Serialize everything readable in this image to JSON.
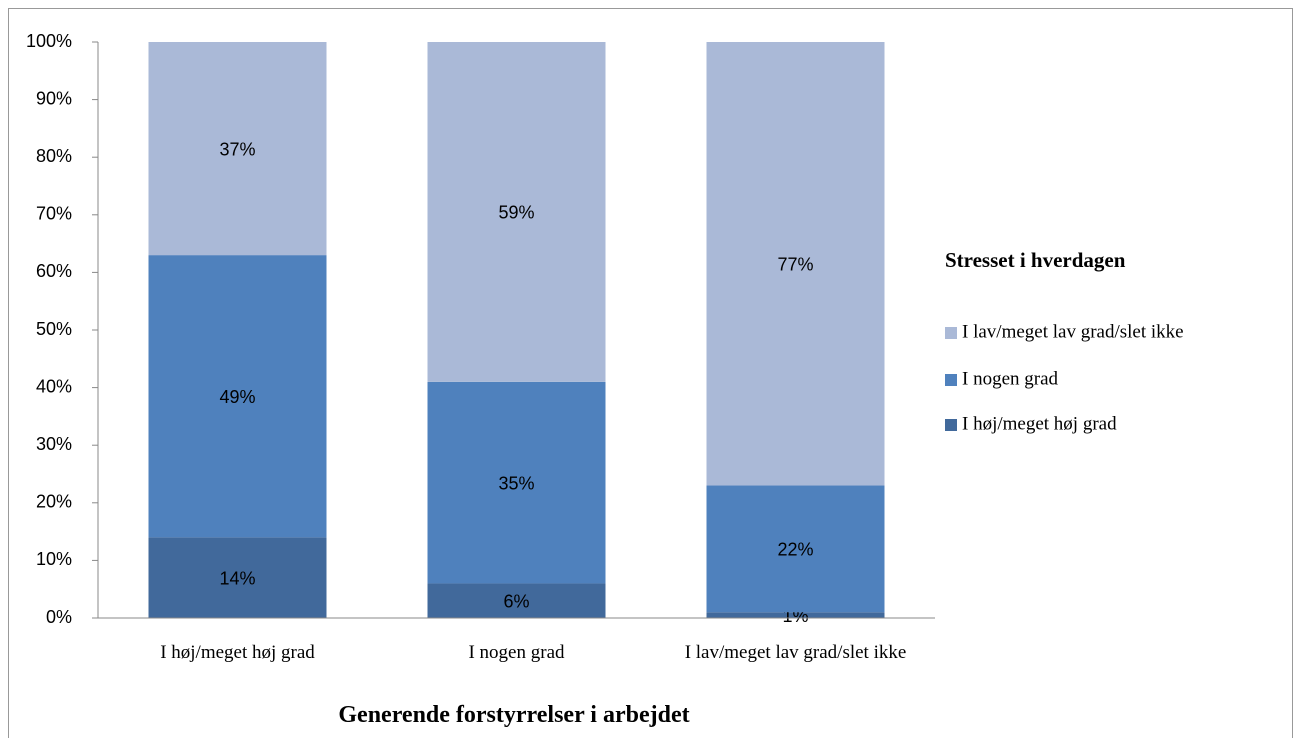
{
  "chart_data": {
    "type": "stacked_bar",
    "x_label": "Generende forstyrrelser i arbejdet",
    "legend_title": "Stresset i hverdagen",
    "legend": "right",
    "categories": [
      "I høj/meget høj grad",
      "I nogen grad",
      "I lav/meget lav grad/slet ikke"
    ],
    "series": [
      {
        "name": "I høj/meget høj grad",
        "color": "#41699b",
        "values": [
          14,
          6,
          1
        ],
        "value_labels": [
          "14%",
          "6%",
          "1%"
        ]
      },
      {
        "name": "I nogen grad",
        "color": "#4f81bd",
        "values": [
          49,
          35,
          22
        ],
        "value_labels": [
          "49%",
          "35%",
          "22%"
        ]
      },
      {
        "name": "I lav/meget lav grad/slet ikke",
        "color": "#aab9d7",
        "values": [
          37,
          59,
          77
        ],
        "value_labels": [
          "37%",
          "59%",
          "77%"
        ]
      }
    ],
    "ylim": [
      0,
      100
    ],
    "yticks": [
      {
        "value": 0,
        "label": "0%"
      },
      {
        "value": 10,
        "label": "10%"
      },
      {
        "value": 20,
        "label": "20%"
      },
      {
        "value": 30,
        "label": "30%"
      },
      {
        "value": 40,
        "label": "40%"
      },
      {
        "value": 50,
        "label": "50%"
      },
      {
        "value": 60,
        "label": "60%"
      },
      {
        "value": 70,
        "label": "70%"
      },
      {
        "value": 80,
        "label": "80%"
      },
      {
        "value": 90,
        "label": "90%"
      },
      {
        "value": 100,
        "label": "100%"
      }
    ],
    "grid": false
  }
}
